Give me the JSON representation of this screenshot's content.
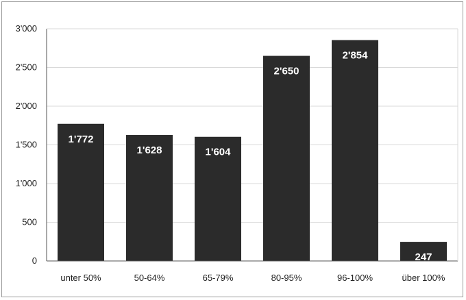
{
  "chart_data": {
    "type": "bar",
    "categories": [
      "unter 50%",
      "50-64%",
      "65-79%",
      "80-95%",
      "96-100%",
      "über 100%"
    ],
    "values": [
      1772,
      1628,
      1604,
      2650,
      2854,
      247
    ],
    "value_labels": [
      "1'772",
      "1'628",
      "1'604",
      "2'650",
      "2'854",
      "247"
    ],
    "y_ticks": [
      0,
      500,
      1000,
      1500,
      2000,
      2500,
      3000
    ],
    "y_tick_labels": [
      "0",
      "500",
      "1'000",
      "1'500",
      "2'000",
      "2'500",
      "3'000"
    ],
    "ylim": [
      0,
      3000
    ],
    "grid": true,
    "title": "",
    "xlabel": "",
    "ylabel": "",
    "colors": {
      "bar": "#2b2b2b",
      "grid": "#d9d9d9",
      "axis": "#555555"
    }
  }
}
